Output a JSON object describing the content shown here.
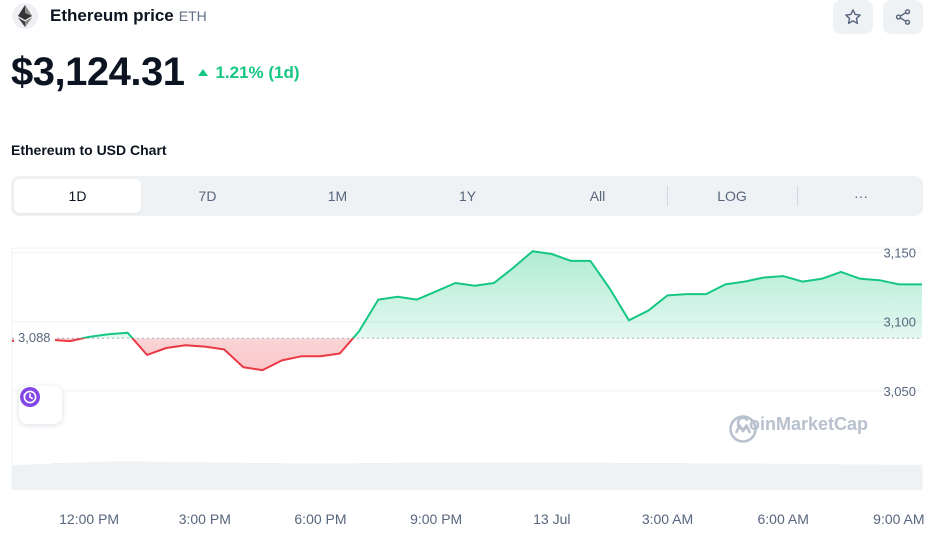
{
  "header": {
    "coin_name": "Ethereum price",
    "coin_symbol": "ETH",
    "logo_icon": "ethereum-logo-icon",
    "star_icon": "star-icon",
    "share_icon": "share-icon"
  },
  "price": {
    "value": "$3,124.31",
    "change": "1.21% (1d)",
    "change_direction": "up",
    "colors": {
      "up": "#16c784",
      "down": "#ea3943"
    }
  },
  "chart_title": "Ethereum to USD Chart",
  "tabs": [
    {
      "label": "1D",
      "active": true
    },
    {
      "label": "7D",
      "active": false
    },
    {
      "label": "1M",
      "active": false
    },
    {
      "label": "1Y",
      "active": false
    },
    {
      "label": "All",
      "active": false
    },
    {
      "label": "LOG",
      "active": false
    },
    {
      "label": "···",
      "active": false
    }
  ],
  "reference_price": "3,088",
  "watermark": "CoinMarketCap",
  "history_icon": "history-clock-icon",
  "chart_data": {
    "type": "area",
    "title": "",
    "xlabel": "",
    "ylabel": "",
    "reference_line": 3088,
    "y_ticks": [
      3150,
      3100,
      3050
    ],
    "y_tick_labels": [
      "3,150",
      "3,100",
      "3,050"
    ],
    "ylim": [
      3000,
      3175
    ],
    "x_ticks": [
      "12:00 PM",
      "3:00 PM",
      "6:00 PM",
      "9:00 PM",
      "13 Jul",
      "3:00 AM",
      "6:00 AM",
      "9:00 AM"
    ],
    "x_tick_hours": [
      2,
      5,
      8,
      11,
      14,
      17,
      20,
      23
    ],
    "xlim": [
      0,
      23.6
    ],
    "grid": true,
    "series": [
      {
        "x": [
          0,
          0.5,
          1,
          1.5,
          2,
          2.5,
          3,
          3.5,
          4,
          4.5,
          5,
          5.5,
          6,
          6.5,
          7,
          7.5,
          8,
          8.5,
          9,
          9.5,
          10,
          10.5,
          11,
          11.5,
          12,
          12.5,
          13,
          13.5,
          14,
          14.5,
          15,
          15.5,
          16,
          16.5,
          17,
          17.5,
          18,
          18.5,
          19,
          19.5,
          20,
          20.5,
          21,
          21.5,
          22,
          22.5,
          23,
          23.6
        ],
        "values": [
          3086,
          3088,
          3087,
          3086,
          3089,
          3091,
          3092,
          3076,
          3081,
          3083,
          3082,
          3080,
          3067,
          3065,
          3072,
          3075,
          3075,
          3077,
          3093,
          3116,
          3118,
          3116,
          3122,
          3128,
          3126,
          3128,
          3139,
          3151,
          3149,
          3144,
          3144,
          3124,
          3101,
          3108,
          3119,
          3120,
          3120,
          3127,
          3129,
          3132,
          3133,
          3129,
          3131,
          3136,
          3131,
          3130,
          3127,
          3127
        ],
        "volume": [
          0.7,
          0.72,
          0.75,
          0.76,
          0.78,
          0.8,
          0.8,
          0.78,
          0.77,
          0.77,
          0.76,
          0.76,
          0.75,
          0.75,
          0.74,
          0.74,
          0.74,
          0.74,
          0.75,
          0.75,
          0.76,
          0.76,
          0.76,
          0.76,
          0.76,
          0.76,
          0.76,
          0.76,
          0.76,
          0.76,
          0.76,
          0.75,
          0.75,
          0.75,
          0.75,
          0.74,
          0.74,
          0.74,
          0.74,
          0.73,
          0.73,
          0.72,
          0.72,
          0.71,
          0.71,
          0.7,
          0.7,
          0.69
        ]
      }
    ]
  }
}
